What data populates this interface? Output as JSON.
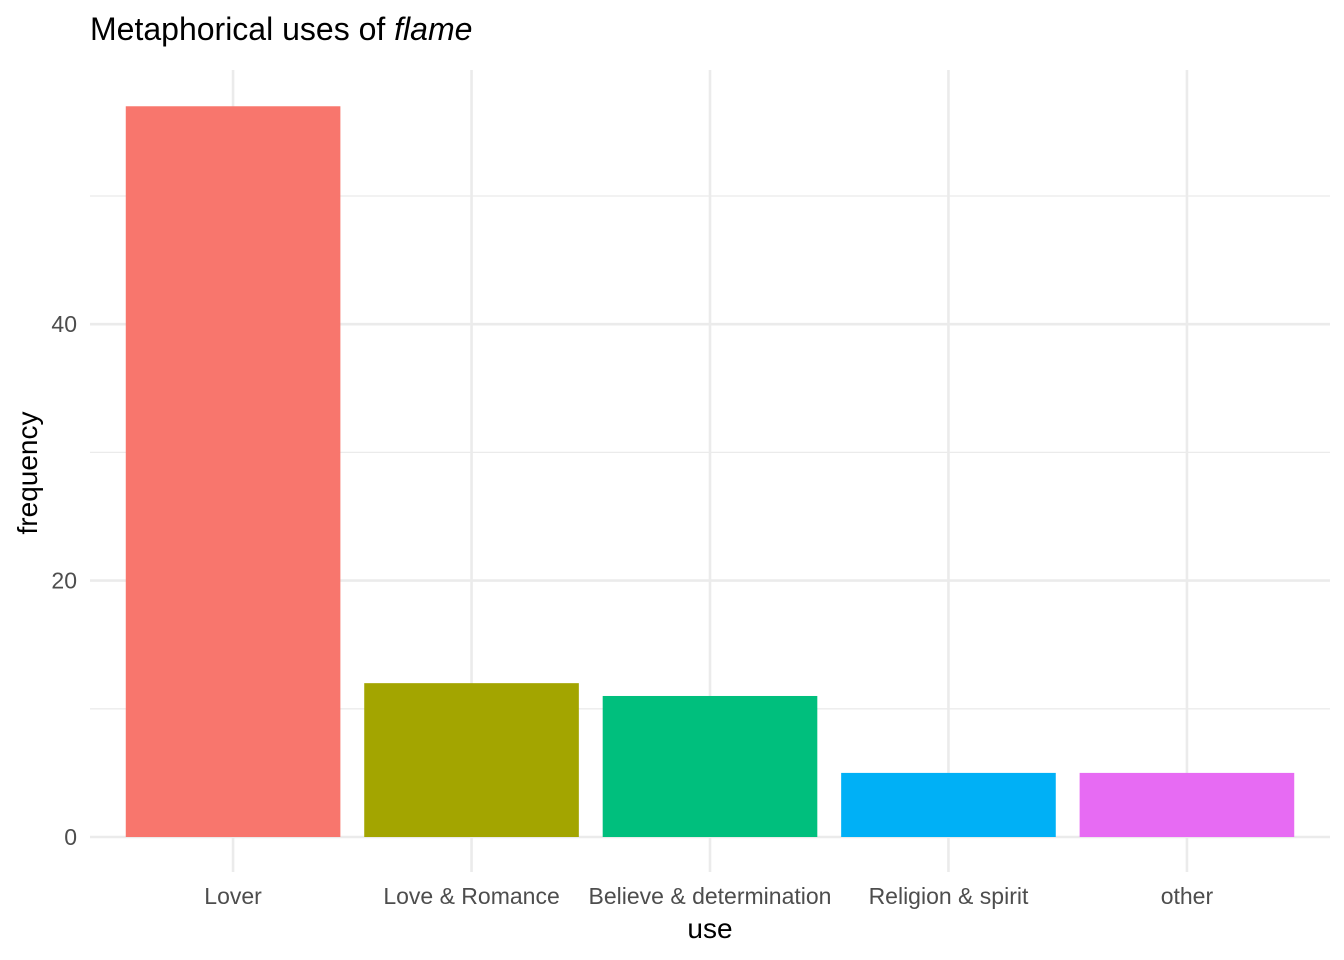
{
  "chart_data": {
    "type": "bar",
    "title": "Metaphorical uses of ",
    "title_emphasis": "flame",
    "xlabel": "use",
    "ylabel": "frequency",
    "categories": [
      "Lover",
      "Love & Romance",
      "Believe & determination",
      "Religion & spirit",
      "other"
    ],
    "values": [
      57,
      12,
      11,
      5,
      5
    ],
    "colors": [
      "#F8766D",
      "#A3A500",
      "#00BF7D",
      "#00B0F6",
      "#E76BF3"
    ],
    "ylim": [
      0,
      60
    ],
    "y_ticks": [
      0,
      20,
      40
    ],
    "y_tick_labels": [
      "0",
      "20",
      "40"
    ],
    "grid": true,
    "legend": "none"
  }
}
